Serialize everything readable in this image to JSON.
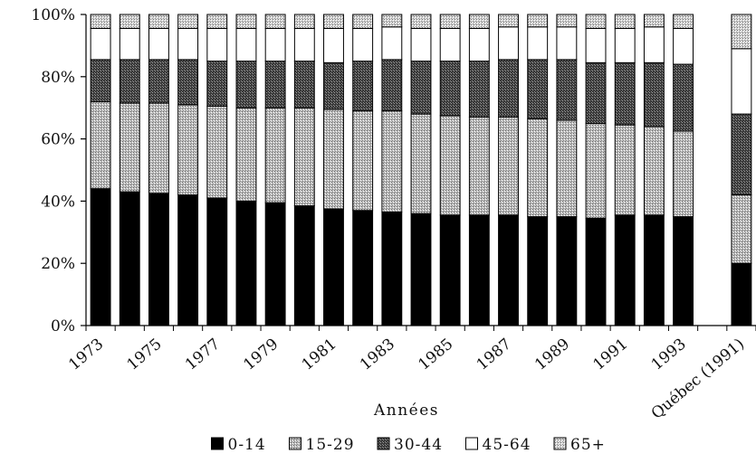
{
  "chart_data": {
    "type": "bar",
    "stacked": true,
    "percent": true,
    "title": "",
    "xlabel": "Années",
    "ylabel": "",
    "ylim": [
      0,
      100
    ],
    "y_ticks": [
      "0%",
      "20%",
      "40%",
      "60%",
      "80%",
      "100%"
    ],
    "categories": [
      "1973",
      "1974",
      "1975",
      "1976",
      "1977",
      "1978",
      "1979",
      "1980",
      "1981",
      "1982",
      "1983",
      "1984",
      "1985",
      "1986",
      "1987",
      "1988",
      "1989",
      "1990",
      "1991",
      "1992",
      "1993",
      "1994",
      "Québec (1991)"
    ],
    "x_tick_labels": [
      "1973",
      "1975",
      "1977",
      "1979",
      "1981",
      "1983",
      "1985",
      "1987",
      "1989",
      "1991",
      "1993",
      "Québec (1991)"
    ],
    "series": [
      {
        "name": "0-14",
        "color": "#000000",
        "pattern": "solid",
        "values": [
          44,
          43,
          42.5,
          42,
          41,
          40,
          39.5,
          38.5,
          37.5,
          37,
          36.5,
          36,
          35.5,
          35.5,
          35.5,
          35,
          35,
          34.5,
          35.5,
          35.5,
          35,
          null,
          20
        ]
      },
      {
        "name": "15-29",
        "color": "#bfbfbf",
        "pattern": "stipple",
        "values": [
          28,
          28.5,
          29,
          29,
          29.5,
          30,
          30.5,
          31.5,
          32,
          32,
          32.5,
          32,
          32,
          31.5,
          31.5,
          31.5,
          31,
          30.5,
          29,
          28.5,
          27.5,
          null,
          22
        ]
      },
      {
        "name": "30-44",
        "color": "#505050",
        "pattern": "dark-stipple",
        "values": [
          13.5,
          14,
          14,
          14.5,
          14.5,
          15,
          15,
          15,
          15,
          16,
          16.5,
          17,
          17.5,
          18,
          18.5,
          19,
          19.5,
          19.5,
          20,
          20.5,
          21.5,
          null,
          26
        ]
      },
      {
        "name": "45-64",
        "color": "#ffffff",
        "pattern": "solid",
        "values": [
          10,
          10,
          10,
          10,
          10.5,
          10.5,
          10.5,
          10.5,
          11,
          10.5,
          10.5,
          10.5,
          10.5,
          10.5,
          10.5,
          10.5,
          10.5,
          11,
          11,
          11.5,
          11.5,
          null,
          21
        ]
      },
      {
        "name": "65+",
        "color": "#d0d0d0",
        "pattern": "stipple",
        "values": [
          4.5,
          4.5,
          4.5,
          4.5,
          4.5,
          4.5,
          4.5,
          4.5,
          4.5,
          4.5,
          4,
          4.5,
          4.5,
          4.5,
          4,
          4,
          4,
          4.5,
          4.5,
          4,
          4.5,
          null,
          11
        ]
      }
    ],
    "legend_position": "bottom",
    "grid": false
  }
}
